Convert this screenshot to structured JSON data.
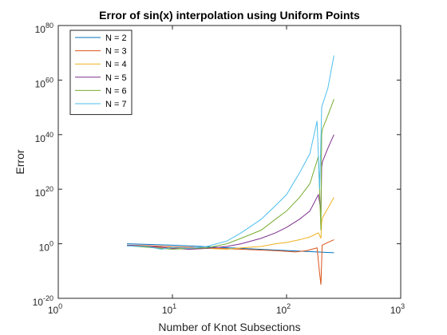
{
  "chart_data": {
    "type": "line",
    "title": "Error of sin(x) interpolation using Uniform Points",
    "xlabel": "Number of Knot Subsections",
    "ylabel": "Error",
    "x_scale": "log",
    "y_scale": "log",
    "xlim": [
      1,
      1000
    ],
    "ylim": [
      1e-20,
      1e+80
    ],
    "x_ticks": [
      {
        "value": 1,
        "base": "10",
        "exp": "0"
      },
      {
        "value": 10,
        "base": "10",
        "exp": "1"
      },
      {
        "value": 100,
        "base": "10",
        "exp": "2"
      },
      {
        "value": 1000,
        "base": "10",
        "exp": "3"
      }
    ],
    "y_ticks": [
      {
        "value": 1e-20,
        "base": "10",
        "exp": "-20"
      },
      {
        "value": 1,
        "base": "10",
        "exp": "0"
      },
      {
        "value": 1e+20,
        "base": "10",
        "exp": "20"
      },
      {
        "value": 1e+40,
        "base": "10",
        "exp": "40"
      },
      {
        "value": 1e+60,
        "base": "10",
        "exp": "60"
      },
      {
        "value": 1e+80,
        "base": "10",
        "exp": "80"
      }
    ],
    "grid": false,
    "legend_position": "top-left",
    "series": [
      {
        "name": "N = 2",
        "color": "#0072BD",
        "x": [
          4,
          6,
          10,
          20,
          40,
          80,
          150,
          260
        ],
        "y": [
          1,
          0.6,
          0.3,
          0.08,
          0.02,
          0.005,
          0.0015,
          0.0005
        ]
      },
      {
        "name": "N = 3",
        "color": "#D95319",
        "x": [
          4,
          6,
          10,
          20,
          40,
          80,
          120,
          150,
          185,
          195,
          200,
          205,
          230,
          260
        ],
        "y": [
          0.3,
          0.2,
          0.08,
          0.03,
          0.01,
          0.003,
          0.001,
          0.003,
          0.03,
          1e-11,
          1e-15,
          0.3,
          3,
          30
        ]
      },
      {
        "name": "N = 4",
        "color": "#EDB120",
        "x": [
          4,
          6,
          8,
          10,
          14,
          20,
          30,
          40,
          60,
          80,
          100,
          130,
          160,
          190,
          200,
          203,
          206,
          230,
          260
        ],
        "y": [
          0.2,
          0.1,
          0.03,
          0.05,
          0.01,
          0.02,
          0.01,
          0.03,
          0.1,
          1,
          3,
          30,
          300,
          10000,
          100,
          100000000.0,
          3000000000.0,
          10000000000000.0,
          1e+17
        ]
      },
      {
        "name": "N = 5",
        "color": "#7E2F8E",
        "x": [
          4,
          6,
          8,
          10,
          14,
          20,
          30,
          40,
          60,
          80,
          100,
          130,
          160,
          190,
          200,
          203,
          206,
          230,
          260
        ],
        "y": [
          0.3,
          0.1,
          0.05,
          0.02,
          0.01,
          0.02,
          0.1,
          1,
          100,
          10000,
          1000000.0,
          1000000000.0,
          1000000000000.0,
          1e+18,
          1000000000000.0,
          1e+28,
          1e+30,
          1e+35,
          1e+40
        ]
      },
      {
        "name": "N = 6",
        "color": "#77AC30",
        "x": [
          4,
          6,
          8,
          10,
          14,
          20,
          30,
          40,
          60,
          80,
          100,
          130,
          160,
          190,
          200,
          203,
          206,
          230,
          260
        ],
        "y": [
          0.2,
          0.05,
          0.02,
          0.01,
          0.02,
          0.03,
          1,
          100,
          100000,
          1000000000.0,
          1000000000000.0,
          1e+17,
          1e+22,
          1e+32,
          100000.0,
          1e+40,
          1e+42,
          1e+47,
          1e+53
        ]
      },
      {
        "name": "N = 7",
        "color": "#4DBEEE",
        "x": [
          4,
          6,
          8,
          10,
          14,
          20,
          30,
          40,
          60,
          80,
          100,
          130,
          160,
          185,
          195,
          200,
          203,
          210,
          230,
          260
        ],
        "y": [
          0.15,
          0.1,
          0.01,
          0.05,
          0.02,
          0.1,
          10,
          10000,
          1000000000.0,
          100000000000000.0,
          1e+18,
          1e+26,
          1e+33,
          1e+45,
          1e+20,
          1e+38,
          1e+50,
          1e+52,
          1e+57,
          1e+69
        ]
      }
    ]
  }
}
